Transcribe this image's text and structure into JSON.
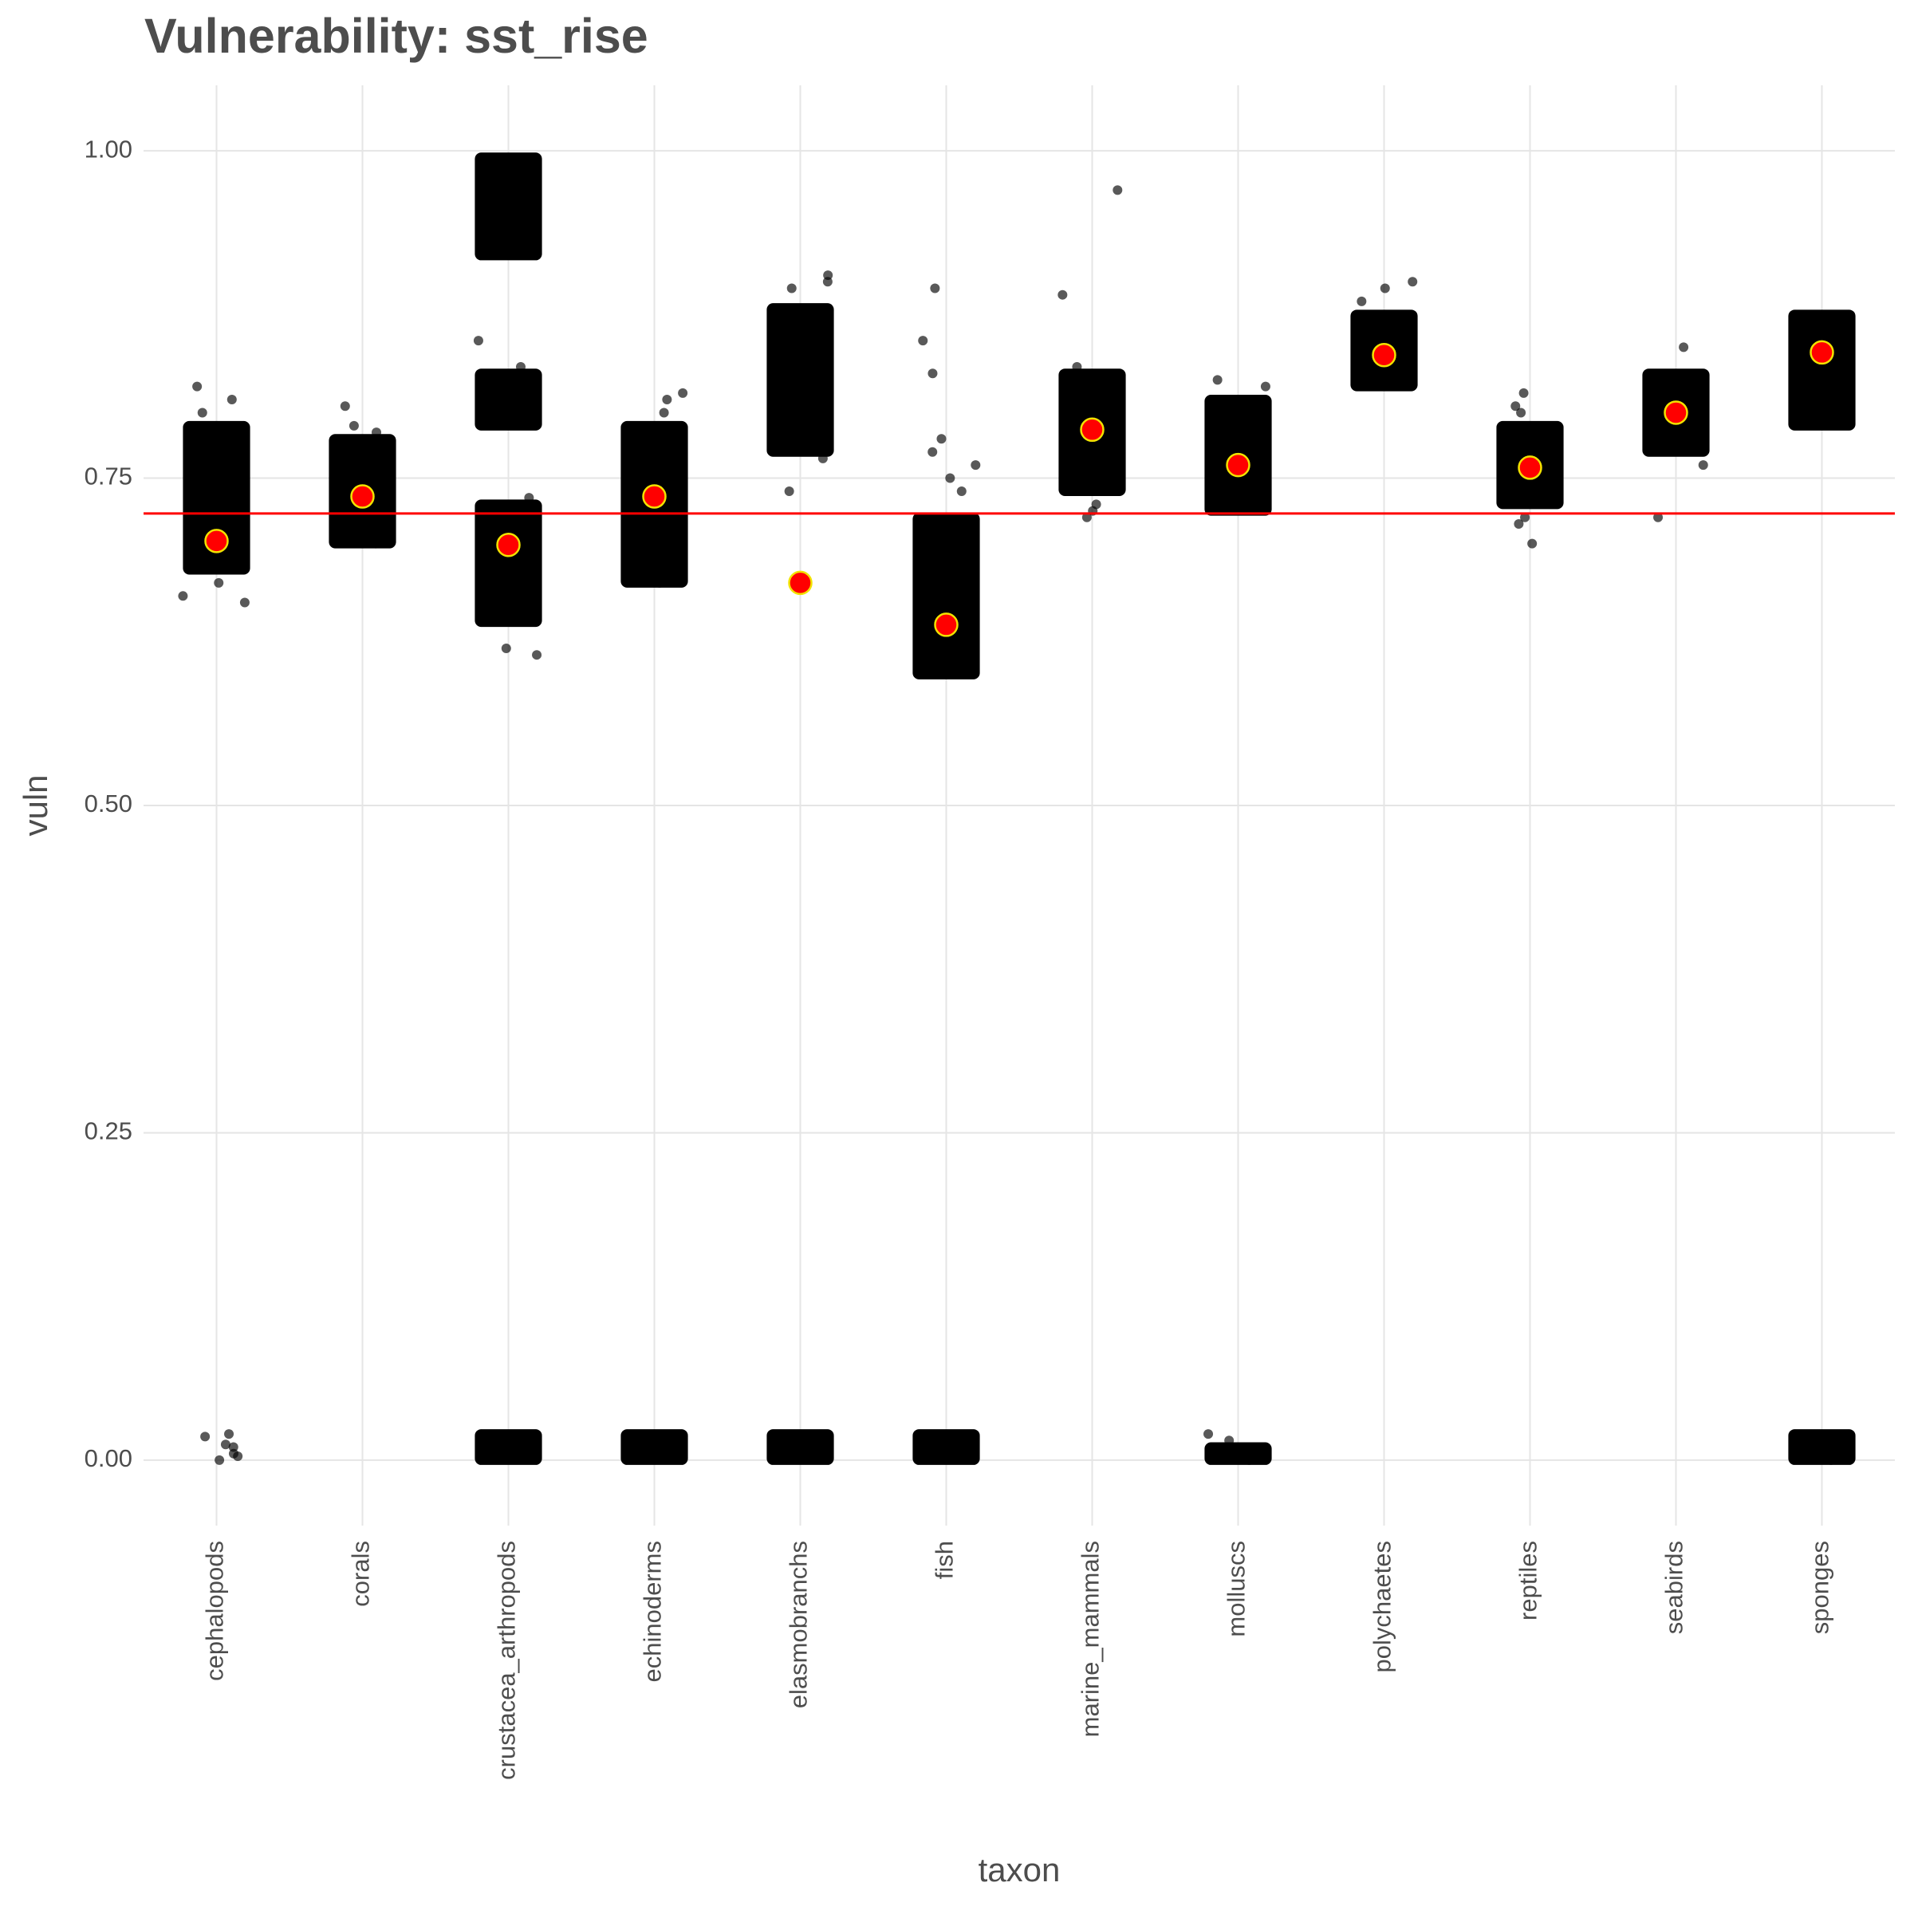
{
  "chart_data": {
    "type": "strip",
    "title": "Vulnerability: sst_rise",
    "x_label": "taxon",
    "y_label": "vuln",
    "categories": [
      "cephalopods",
      "corals",
      "crustacea_arthropods",
      "echinoderms",
      "elasmobranchs",
      "fish",
      "marine_mammals",
      "molluscs",
      "polychaetes",
      "reptiles",
      "seabirds",
      "sponges"
    ],
    "means": [
      0.702,
      0.736,
      0.699,
      0.736,
      0.67,
      0.638,
      0.787,
      0.76,
      0.844,
      0.758,
      0.8,
      0.846
    ],
    "mean_color": "#ff0000",
    "mean_outline": "#f2e200",
    "point_color": "#000000",
    "reference_line": {
      "value": 0.723,
      "color": "#ff0000"
    },
    "groups": [
      {
        "bands": [
          [
            0.68,
            0.79
          ]
        ],
        "points": [
          0.66,
          0.655,
          0.8,
          0.82,
          0.81,
          0.67,
          0.018,
          0.01,
          0.005,
          0.0,
          0.02,
          0.012,
          0.003
        ]
      },
      {
        "bands": [
          [
            0.7,
            0.78
          ]
        ],
        "points": [
          0.805,
          0.79,
          0.785,
          0.7
        ]
      },
      {
        "bands": [
          [
            0.92,
            0.995
          ],
          [
            0.79,
            0.83
          ],
          [
            0.64,
            0.73
          ],
          [
            0.0,
            0.02
          ]
        ],
        "points": [
          0.855,
          0.835,
          0.62,
          0.615,
          0.735,
          0.97,
          0.96
        ]
      },
      {
        "bands": [
          [
            0.67,
            0.79
          ],
          [
            0.0,
            0.02
          ]
        ],
        "points": [
          0.815,
          0.81,
          0.8,
          0.67
        ]
      },
      {
        "bands": [
          [
            0.77,
            0.88
          ],
          [
            0.0,
            0.02
          ]
        ],
        "points": [
          0.905,
          0.9,
          0.895,
          0.74,
          0.765
        ]
      },
      {
        "bands": [
          [
            0.6,
            0.72
          ],
          [
            0.0,
            0.02
          ]
        ],
        "points": [
          0.895,
          0.855,
          0.83,
          0.78,
          0.77,
          0.76,
          0.75,
          0.74
        ]
      },
      {
        "bands": [
          [
            0.74,
            0.83
          ]
        ],
        "points": [
          0.97,
          0.89,
          0.835,
          0.73,
          0.725,
          0.72
        ]
      },
      {
        "bands": [
          [
            0.725,
            0.81
          ],
          [
            0.0,
            0.01
          ]
        ],
        "points": [
          0.825,
          0.82,
          0.02,
          0.015,
          0.005,
          0.0
        ]
      },
      {
        "bands": [
          [
            0.82,
            0.875
          ]
        ],
        "points": [
          0.9,
          0.895,
          0.885
        ]
      },
      {
        "bands": [
          [
            0.73,
            0.79
          ]
        ],
        "points": [
          0.815,
          0.805,
          0.8,
          0.72,
          0.715,
          0.7
        ]
      },
      {
        "bands": [
          [
            0.77,
            0.83
          ]
        ],
        "points": [
          0.85,
          0.72,
          0.76
        ]
      },
      {
        "bands": [
          [
            0.79,
            0.875
          ],
          [
            0.0,
            0.02
          ]
        ],
        "points": [
          0.015,
          0.01,
          0.005,
          0.0
        ]
      }
    ],
    "ylim": [
      -0.05,
      1.05
    ],
    "yticks": [
      {
        "value": 0,
        "label": "0.00"
      },
      {
        "value": 0.25,
        "label": "0.25"
      },
      {
        "value": 0.5,
        "label": "0.50"
      },
      {
        "value": 0.75,
        "label": "0.75"
      },
      {
        "value": 1,
        "label": "1.00"
      }
    ],
    "grid": true
  }
}
